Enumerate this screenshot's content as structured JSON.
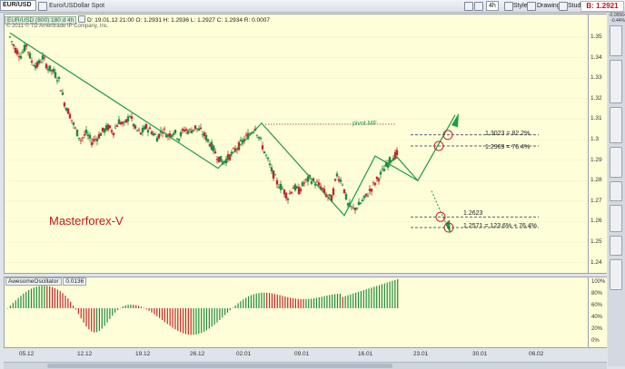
{
  "toolbar": {
    "symbol": "EUR/USD",
    "description": "Euro/USDollar Spot",
    "timeframe": "4h",
    "style_label": "Style",
    "drawings_label": "Drawings",
    "studies_label": "Studies",
    "bid_price": "B: 1.2921"
  },
  "chart_header": {
    "title": "EUR/USD (800) 180 d 4h",
    "date": "D: 19.01.12 21:00",
    "open": "O: 1.2931",
    "high": "H: 1.2936",
    "low": "L: 1.2927",
    "close": "C: 1.2934",
    "range": "R: 0.0007",
    "copyright": "© 2011 © TD Ameritrade IP Company, Inc."
  },
  "side_readout": {
    "line1": "-0.00564",
    "line2": "-0.44%"
  },
  "annotations": {
    "watermark": "Masterforex-V",
    "pivot_label": "pivot MF",
    "level1": "1.3023 = 82.2%",
    "level2": "1.2969 = 76.4%",
    "level3": "1.2623",
    "level4": "1.2571 = 123.6% + 76.4%"
  },
  "oscillator": {
    "name": "AwesomeOscillator",
    "value": "0.0136",
    "ticks": [
      "100%",
      "80%",
      "60%",
      "40%",
      "20%",
      "0%"
    ]
  },
  "chart_data": {
    "type": "candlestick",
    "price_ticks": [
      "1.35",
      "1.34",
      "1.33",
      "1.32",
      "1.31",
      "1.3",
      "1.29",
      "1.28",
      "1.27",
      "1.26",
      "1.25",
      "1.24"
    ],
    "x_ticks": [
      "05.12",
      "12.12",
      "19.12",
      "26.12",
      "02.01",
      "09.01",
      "16.01",
      "23.01",
      "30.01",
      "06.02"
    ],
    "ylim": [
      1.235,
      1.361
    ],
    "zigzag_price": [
      1.352,
      1.286,
      1.308,
      1.263,
      1.292,
      1.28,
      1.306
    ],
    "pivot_level": 1.3075,
    "levels": [
      1.3023,
      1.2969,
      1.2623,
      1.2571
    ],
    "close_path": [
      1.35,
      1.344,
      1.341,
      1.346,
      1.338,
      1.336,
      1.34,
      1.335,
      1.333,
      1.329,
      1.318,
      1.312,
      1.305,
      1.3,
      1.303,
      1.299,
      1.301,
      1.304,
      1.306,
      1.304,
      1.309,
      1.307,
      1.312,
      1.305,
      1.303,
      1.306,
      1.304,
      1.301,
      1.305,
      1.302,
      1.304,
      1.301,
      1.305,
      1.304,
      1.306,
      1.304,
      1.301,
      1.297,
      1.292,
      1.289,
      1.291,
      1.294,
      1.297,
      1.3,
      1.303,
      1.306,
      1.299,
      1.292,
      1.285,
      1.279,
      1.276,
      1.272,
      1.277,
      1.275,
      1.279,
      1.281,
      1.279,
      1.277,
      1.273,
      1.271,
      1.283,
      1.279,
      1.268,
      1.266,
      1.268,
      1.271,
      1.275,
      1.279,
      1.283,
      1.287,
      1.291,
      1.293
    ]
  }
}
